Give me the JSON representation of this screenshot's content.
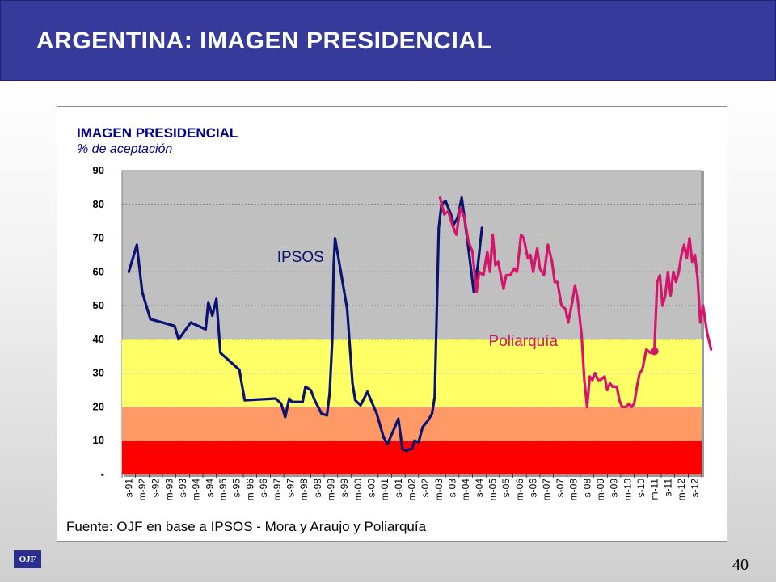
{
  "header": {
    "title": "ARGENTINA:  IMAGEN PRESIDENCIAL"
  },
  "footer": {
    "logo_text": "OJF",
    "page_number": "40"
  },
  "colors": {
    "header_bg": "#363a9a",
    "ipsos": "#0a1272",
    "poliarquia": "#d4156b",
    "band_low": "#ff0000",
    "band_mid": "#ff9966",
    "band_high": "#ffff66",
    "plot_bg": "#c0c0c0"
  },
  "chart_data": {
    "type": "line",
    "title": "IMAGEN PRESIDENCIAL",
    "subtitle": "% de aceptación",
    "source": "Fuente: OJF  en base a IPSOS - Mora y Araujo y Poliarquía",
    "xlabel": "",
    "ylabel": "",
    "ylim": [
      0,
      90
    ],
    "yticks": [
      {
        "value": 0,
        "label": "-"
      },
      {
        "value": 10,
        "label": "10"
      },
      {
        "value": 20,
        "label": "20"
      },
      {
        "value": 30,
        "label": "30"
      },
      {
        "value": 40,
        "label": "40"
      },
      {
        "value": 50,
        "label": "50"
      },
      {
        "value": 60,
        "label": "60"
      },
      {
        "value": 70,
        "label": "70"
      },
      {
        "value": 80,
        "label": "80"
      },
      {
        "value": 90,
        "label": "90"
      }
    ],
    "categories": [
      "s-91",
      "m-92",
      "s-92",
      "m-93",
      "s-93",
      "m-94",
      "s-94",
      "m-95",
      "s-95",
      "m-96",
      "s-96",
      "m-97",
      "s-97",
      "m-98",
      "s-98",
      "m-99",
      "s-99",
      "m-00",
      "s-00",
      "m-01",
      "s-01",
      "m-02",
      "s-02",
      "m-03",
      "s-03",
      "m-04",
      "s-04",
      "m-05",
      "s-05",
      "m-06",
      "s-06",
      "m-07",
      "s-07",
      "m-08",
      "s-08",
      "m-09",
      "s-09",
      "m-10",
      "s-10",
      "m-11",
      "s-11",
      "m-12",
      "s-12"
    ],
    "bands": [
      {
        "from": 0,
        "to": 10,
        "color": "#ff0000"
      },
      {
        "from": 10,
        "to": 20,
        "color": "#ff9966"
      },
      {
        "from": 20,
        "to": 40,
        "color": "#ffff66"
      }
    ],
    "grid": true,
    "series": [
      {
        "name": "IPSOS",
        "color": "#0a1272",
        "points": [
          [
            0,
            60
          ],
          [
            0.6,
            68
          ],
          [
            1,
            54
          ],
          [
            1.6,
            46
          ],
          [
            3.4,
            44
          ],
          [
            3.7,
            40
          ],
          [
            4.6,
            45
          ],
          [
            5.7,
            43
          ],
          [
            5.9,
            51
          ],
          [
            6.2,
            47
          ],
          [
            6.5,
            52
          ],
          [
            6.8,
            36
          ],
          [
            8.2,
            31
          ],
          [
            8.6,
            22
          ],
          [
            10.9,
            22.5
          ],
          [
            11.3,
            21
          ],
          [
            11.6,
            17
          ],
          [
            11.9,
            22.5
          ],
          [
            12.1,
            21.5
          ],
          [
            12.9,
            21.5
          ],
          [
            13.1,
            26
          ],
          [
            13.5,
            25
          ],
          [
            13.8,
            22
          ],
          [
            14.3,
            18
          ],
          [
            14.7,
            17.5
          ],
          [
            14.9,
            24
          ],
          [
            15.1,
            40
          ],
          [
            15.2,
            62
          ],
          [
            15.3,
            70
          ],
          [
            16.2,
            49
          ],
          [
            16.4,
            38
          ],
          [
            16.6,
            27
          ],
          [
            16.8,
            22
          ],
          [
            17.2,
            20.5
          ],
          [
            17.7,
            24.5
          ],
          [
            18.4,
            18
          ],
          [
            18.9,
            11
          ],
          [
            19.2,
            9
          ],
          [
            20,
            16.5
          ],
          [
            20.3,
            7.5
          ],
          [
            20.6,
            7
          ],
          [
            20.8,
            7.5
          ],
          [
            21,
            7.5
          ],
          [
            21.2,
            10
          ],
          [
            21.5,
            9.5
          ],
          [
            21.8,
            14
          ],
          [
            22.2,
            16
          ],
          [
            22.5,
            18
          ],
          [
            22.7,
            23
          ],
          [
            22.8,
            40
          ],
          [
            23,
            73
          ],
          [
            23.2,
            80
          ],
          [
            23.5,
            81
          ],
          [
            23.9,
            77
          ],
          [
            24.1,
            74
          ],
          [
            24.4,
            76
          ],
          [
            24.7,
            82
          ],
          [
            25.1,
            70
          ],
          [
            25.6,
            54
          ],
          [
            25.9,
            62
          ],
          [
            26.2,
            73
          ]
        ]
      },
      {
        "name": "Poliarquía",
        "color": "#d4156b",
        "points": [
          [
            23.1,
            82
          ],
          [
            23.4,
            77
          ],
          [
            23.7,
            78
          ],
          [
            24,
            74
          ],
          [
            24.3,
            71
          ],
          [
            24.6,
            79
          ],
          [
            24.9,
            76
          ],
          [
            25.2,
            69
          ],
          [
            25.5,
            66
          ],
          [
            25.8,
            54
          ],
          [
            26,
            60
          ],
          [
            26.3,
            59
          ],
          [
            26.6,
            66
          ],
          [
            26.8,
            60
          ],
          [
            27,
            71
          ],
          [
            27.2,
            62
          ],
          [
            27.4,
            63
          ],
          [
            27.8,
            55
          ],
          [
            28,
            59
          ],
          [
            28.3,
            59
          ],
          [
            28.6,
            61
          ],
          [
            28.8,
            60
          ],
          [
            29.1,
            71
          ],
          [
            29.3,
            70
          ],
          [
            29.6,
            64
          ],
          [
            29.8,
            65
          ],
          [
            30,
            60
          ],
          [
            30.3,
            67
          ],
          [
            30.5,
            61
          ],
          [
            30.8,
            59
          ],
          [
            31.1,
            68
          ],
          [
            31.4,
            63
          ],
          [
            31.6,
            57
          ],
          [
            31.8,
            57
          ],
          [
            32.1,
            50
          ],
          [
            32.4,
            49
          ],
          [
            32.6,
            45
          ],
          [
            32.9,
            51
          ],
          [
            33.1,
            56
          ],
          [
            33.3,
            52
          ],
          [
            33.6,
            41
          ],
          [
            33.8,
            28
          ],
          [
            34,
            20
          ],
          [
            34.2,
            29
          ],
          [
            34.4,
            28
          ],
          [
            34.6,
            30
          ],
          [
            34.8,
            28
          ],
          [
            35,
            28
          ],
          [
            35.3,
            29
          ],
          [
            35.5,
            25
          ],
          [
            35.7,
            27
          ],
          [
            35.9,
            26
          ],
          [
            36.2,
            26
          ],
          [
            36.4,
            22
          ],
          [
            36.6,
            20
          ],
          [
            36.9,
            20
          ],
          [
            37.1,
            21
          ],
          [
            37.3,
            20
          ],
          [
            37.5,
            21
          ],
          [
            37.7,
            26
          ],
          [
            37.9,
            30
          ],
          [
            38.1,
            31
          ],
          [
            38.4,
            37
          ],
          [
            38.7,
            36
          ],
          [
            39,
            37
          ],
          [
            39.2,
            57
          ],
          [
            39.4,
            59
          ],
          [
            39.6,
            50
          ],
          [
            39.8,
            53
          ],
          [
            40,
            60
          ],
          [
            40.2,
            53
          ],
          [
            40.4,
            60
          ],
          [
            40.6,
            57
          ],
          [
            40.8,
            60
          ],
          [
            41,
            65
          ],
          [
            41.2,
            68
          ],
          [
            41.4,
            64
          ],
          [
            41.6,
            70
          ],
          [
            41.8,
            63
          ],
          [
            42,
            65
          ],
          [
            42.2,
            58
          ],
          [
            42.4,
            45
          ],
          [
            42.6,
            50
          ],
          [
            42.9,
            42
          ],
          [
            43.2,
            37
          ]
        ]
      }
    ],
    "annotations": [
      {
        "text": "IPSOS",
        "x": 11,
        "y": 63,
        "series": "IPSOS"
      },
      {
        "text": "Poliarquía",
        "x": 26.7,
        "y": 38,
        "series": "Poliarquía"
      }
    ],
    "marker": {
      "x": 39,
      "y": 36.5,
      "series": "Poliarquía"
    }
  }
}
